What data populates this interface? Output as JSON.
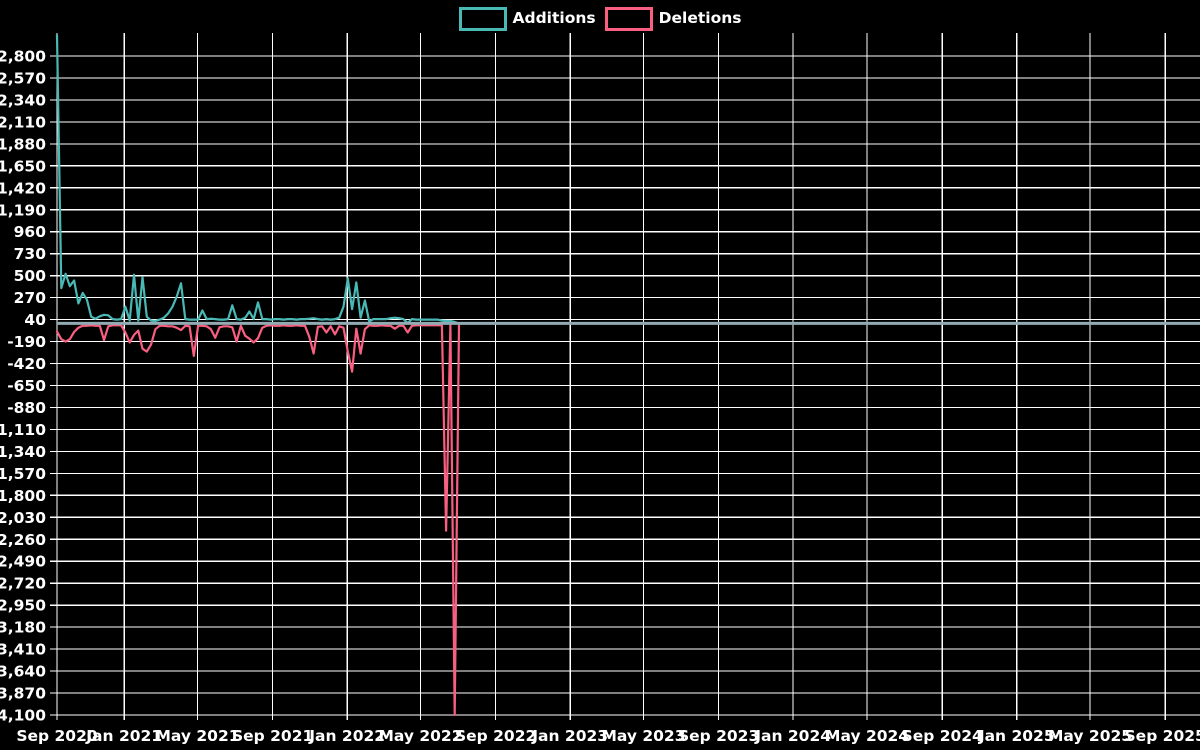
{
  "chart_data": {
    "type": "line",
    "title": "",
    "background_color": "#000000",
    "grid": true,
    "grid_color": "#ffffff",
    "zero_line_color": "#92aab2",
    "text_color": "#ffffff",
    "legend_position": "top-center",
    "x_axis": {
      "tick_labels": [
        "Sep 2020",
        "Jan 2021",
        "May 2021",
        "Sep 2021",
        "Jan 2022",
        "May 2022",
        "Sep 2022",
        "Jan 2023",
        "May 2023",
        "Sep 2023",
        "Jan 2024",
        "May 2024",
        "Sep 2024",
        "Jan 2025",
        "May 2025",
        "Sep 2025"
      ],
      "tick_days": [
        0,
        110,
        230,
        353,
        475,
        595,
        718,
        840,
        960,
        1083,
        1205,
        1326,
        1449,
        1571,
        1691,
        1814
      ],
      "xlim_days": [
        0,
        1871
      ]
    },
    "y_axis": {
      "ticks": [
        2800,
        2570,
        2340,
        2110,
        1880,
        1650,
        1420,
        1190,
        960,
        730,
        500,
        270,
        40,
        -190,
        -420,
        -650,
        -880,
        -1110,
        -1340,
        -1570,
        -1800,
        -2030,
        -2260,
        -2490,
        -2720,
        -2950,
        -3180,
        -3410,
        -3640,
        -3870,
        -4100
      ],
      "ylim": [
        -4100,
        3041
      ]
    },
    "series": [
      {
        "name": "Additions",
        "color": "#4ab8b4",
        "points": [
          [
            0,
            3020
          ],
          [
            7,
            370
          ],
          [
            14,
            520
          ],
          [
            21,
            390
          ],
          [
            28,
            450
          ],
          [
            35,
            210
          ],
          [
            42,
            320
          ],
          [
            49,
            250
          ],
          [
            56,
            70
          ],
          [
            63,
            50
          ],
          [
            70,
            75
          ],
          [
            77,
            90
          ],
          [
            84,
            85
          ],
          [
            91,
            45
          ],
          [
            98,
            40
          ],
          [
            105,
            45
          ],
          [
            112,
            175
          ],
          [
            119,
            30
          ],
          [
            126,
            510
          ],
          [
            133,
            30
          ],
          [
            140,
            485
          ],
          [
            147,
            70
          ],
          [
            154,
            30
          ],
          [
            161,
            25
          ],
          [
            168,
            40
          ],
          [
            175,
            60
          ],
          [
            182,
            105
          ],
          [
            189,
            175
          ],
          [
            196,
            280
          ],
          [
            203,
            420
          ],
          [
            210,
            45
          ],
          [
            217,
            40
          ],
          [
            224,
            40
          ],
          [
            231,
            40
          ],
          [
            238,
            135
          ],
          [
            245,
            45
          ],
          [
            252,
            50
          ],
          [
            259,
            45
          ],
          [
            266,
            40
          ],
          [
            273,
            40
          ],
          [
            280,
            45
          ],
          [
            287,
            190
          ],
          [
            294,
            45
          ],
          [
            301,
            40
          ],
          [
            308,
            60
          ],
          [
            315,
            125
          ],
          [
            322,
            45
          ],
          [
            329,
            220
          ],
          [
            336,
            45
          ],
          [
            343,
            45
          ],
          [
            350,
            40
          ],
          [
            357,
            45
          ],
          [
            364,
            45
          ],
          [
            371,
            40
          ],
          [
            378,
            45
          ],
          [
            385,
            45
          ],
          [
            392,
            40
          ],
          [
            399,
            45
          ],
          [
            406,
            45
          ],
          [
            413,
            50
          ],
          [
            420,
            55
          ],
          [
            427,
            45
          ],
          [
            434,
            40
          ],
          [
            441,
            45
          ],
          [
            448,
            40
          ],
          [
            455,
            45
          ],
          [
            462,
            60
          ],
          [
            469,
            175
          ],
          [
            476,
            470
          ],
          [
            483,
            150
          ],
          [
            490,
            430
          ],
          [
            497,
            60
          ],
          [
            504,
            240
          ],
          [
            511,
            20
          ],
          [
            518,
            45
          ],
          [
            525,
            45
          ],
          [
            532,
            45
          ],
          [
            539,
            45
          ],
          [
            546,
            55
          ],
          [
            553,
            60
          ],
          [
            560,
            55
          ],
          [
            567,
            45
          ],
          [
            574,
            5
          ],
          [
            581,
            45
          ],
          [
            588,
            40
          ],
          [
            595,
            40
          ],
          [
            602,
            40
          ],
          [
            609,
            40
          ],
          [
            616,
            40
          ],
          [
            623,
            40
          ],
          [
            630,
            30
          ],
          [
            637,
            25
          ],
          [
            644,
            25
          ],
          [
            651,
            15
          ],
          [
            658,
            0
          ],
          [
            1855,
            0
          ]
        ]
      },
      {
        "name": "Deletions",
        "color": "#f85f80",
        "points": [
          [
            0,
            -85
          ],
          [
            7,
            -165
          ],
          [
            14,
            -190
          ],
          [
            21,
            -165
          ],
          [
            28,
            -90
          ],
          [
            35,
            -45
          ],
          [
            42,
            -25
          ],
          [
            49,
            -25
          ],
          [
            56,
            -20
          ],
          [
            63,
            -25
          ],
          [
            70,
            -25
          ],
          [
            77,
            -175
          ],
          [
            84,
            -30
          ],
          [
            91,
            -20
          ],
          [
            98,
            -20
          ],
          [
            105,
            -20
          ],
          [
            112,
            -95
          ],
          [
            119,
            -200
          ],
          [
            126,
            -120
          ],
          [
            133,
            -75
          ],
          [
            140,
            -265
          ],
          [
            147,
            -295
          ],
          [
            154,
            -220
          ],
          [
            161,
            -60
          ],
          [
            168,
            -25
          ],
          [
            175,
            -25
          ],
          [
            182,
            -30
          ],
          [
            189,
            -30
          ],
          [
            196,
            -45
          ],
          [
            203,
            -70
          ],
          [
            210,
            -25
          ],
          [
            217,
            -30
          ],
          [
            224,
            -340
          ],
          [
            231,
            -25
          ],
          [
            238,
            -25
          ],
          [
            245,
            -30
          ],
          [
            252,
            -60
          ],
          [
            259,
            -150
          ],
          [
            266,
            -40
          ],
          [
            273,
            -30
          ],
          [
            280,
            -30
          ],
          [
            287,
            -40
          ],
          [
            294,
            -190
          ],
          [
            301,
            -25
          ],
          [
            308,
            -130
          ],
          [
            315,
            -160
          ],
          [
            322,
            -200
          ],
          [
            329,
            -155
          ],
          [
            336,
            -45
          ],
          [
            343,
            -25
          ],
          [
            350,
            -20
          ],
          [
            357,
            -25
          ],
          [
            364,
            -25
          ],
          [
            371,
            -20
          ],
          [
            378,
            -25
          ],
          [
            385,
            -25
          ],
          [
            392,
            -20
          ],
          [
            399,
            -25
          ],
          [
            406,
            -25
          ],
          [
            413,
            -140
          ],
          [
            420,
            -315
          ],
          [
            427,
            -35
          ],
          [
            434,
            -30
          ],
          [
            441,
            -95
          ],
          [
            448,
            -30
          ],
          [
            455,
            -115
          ],
          [
            462,
            -30
          ],
          [
            469,
            -45
          ],
          [
            476,
            -295
          ],
          [
            483,
            -505
          ],
          [
            490,
            -55
          ],
          [
            497,
            -315
          ],
          [
            504,
            -60
          ],
          [
            511,
            -20
          ],
          [
            518,
            -25
          ],
          [
            525,
            -25
          ],
          [
            532,
            -20
          ],
          [
            539,
            -25
          ],
          [
            546,
            -25
          ],
          [
            553,
            -55
          ],
          [
            560,
            -25
          ],
          [
            567,
            -25
          ],
          [
            574,
            -95
          ],
          [
            581,
            -25
          ],
          [
            588,
            -20
          ],
          [
            595,
            -20
          ],
          [
            602,
            -20
          ],
          [
            609,
            -20
          ],
          [
            616,
            -20
          ],
          [
            623,
            -20
          ],
          [
            630,
            -20
          ],
          [
            637,
            -2170
          ],
          [
            644,
            -15
          ],
          [
            651,
            -4100
          ],
          [
            658,
            0
          ],
          [
            1855,
            0
          ]
        ]
      }
    ]
  }
}
